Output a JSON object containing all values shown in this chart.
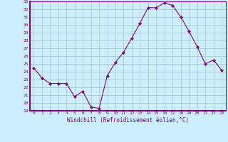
{
  "x": [
    0,
    1,
    2,
    3,
    4,
    5,
    6,
    7,
    8,
    9,
    10,
    11,
    12,
    13,
    14,
    15,
    16,
    17,
    18,
    19,
    20,
    21,
    22,
    23
  ],
  "y": [
    24.5,
    23.2,
    22.5,
    22.5,
    22.5,
    20.8,
    21.5,
    19.5,
    19.3,
    23.5,
    25.2,
    26.5,
    28.3,
    30.2,
    32.2,
    32.2,
    32.8,
    32.5,
    31.0,
    29.2,
    27.2,
    25.0,
    25.5,
    24.2
  ],
  "line_color": "#800080",
  "marker": "D",
  "marker_size": 2,
  "bg_color": "#cceeff",
  "grid_color": "#aacccc",
  "xlabel": "Windchill (Refroidissement éolien,°C)",
  "xlabel_color": "#800080",
  "tick_color": "#800080",
  "ylim": [
    19,
    33
  ],
  "xlim": [
    -0.5,
    23.5
  ],
  "yticks": [
    19,
    20,
    21,
    22,
    23,
    24,
    25,
    26,
    27,
    28,
    29,
    30,
    31,
    32,
    33
  ],
  "xticks": [
    0,
    1,
    2,
    3,
    4,
    5,
    6,
    7,
    8,
    9,
    10,
    11,
    12,
    13,
    14,
    15,
    16,
    17,
    18,
    19,
    20,
    21,
    22,
    23
  ]
}
